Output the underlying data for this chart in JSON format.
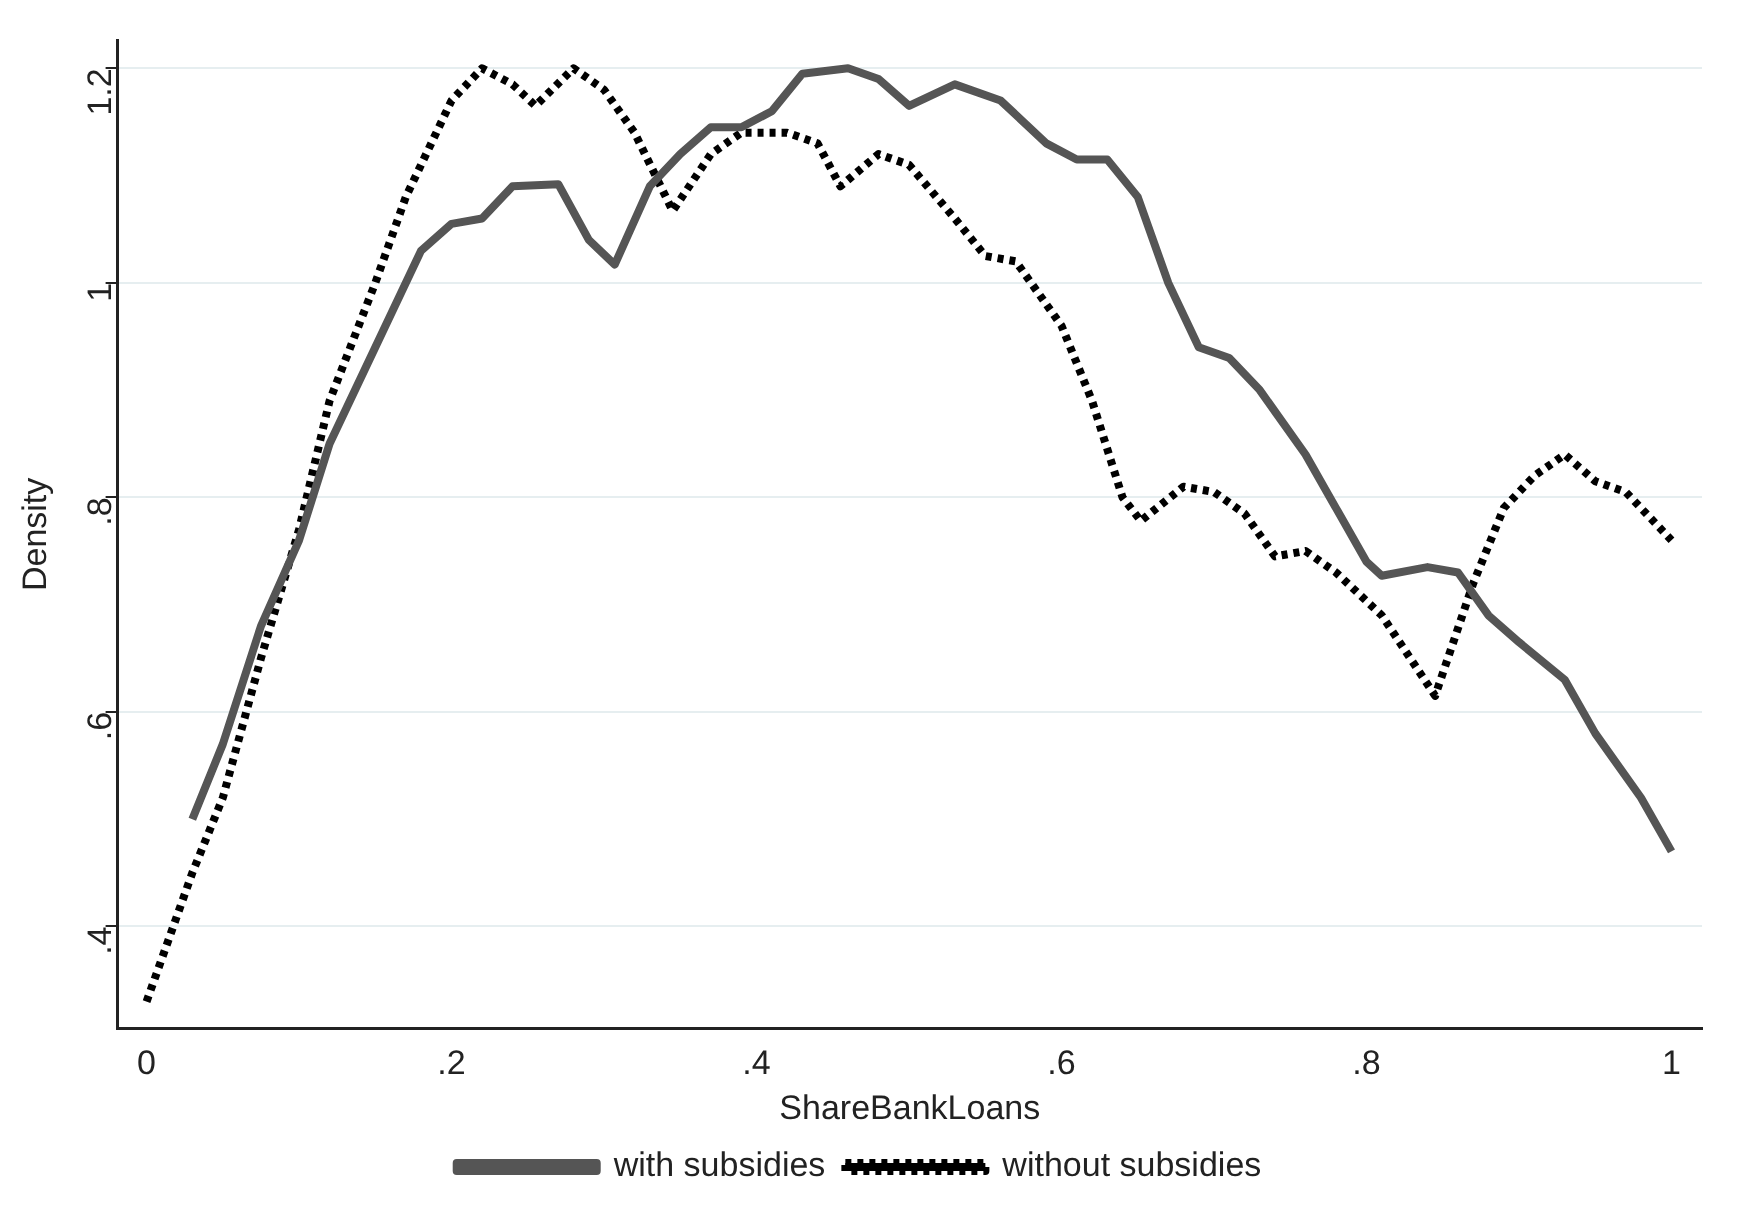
{
  "chart_data": {
    "type": "line",
    "xlabel": "ShareBankLoans",
    "ylabel": "Density",
    "xlim": [
      -0.019,
      1.02
    ],
    "ylim": [
      0.305,
      1.226
    ],
    "xticks": [
      {
        "value": 0,
        "label": "0"
      },
      {
        "value": 0.2,
        "label": ".2"
      },
      {
        "value": 0.4,
        "label": ".4"
      },
      {
        "value": 0.6,
        "label": ".6"
      },
      {
        "value": 0.8,
        "label": ".8"
      },
      {
        "value": 1,
        "label": "1"
      }
    ],
    "yticks": [
      {
        "value": 0.4,
        "label": ".4"
      },
      {
        "value": 0.6,
        "label": ".6"
      },
      {
        "value": 0.8,
        "label": ".8"
      },
      {
        "value": 1,
        "label": "1"
      },
      {
        "value": 1.2,
        "label": "1.2"
      }
    ],
    "grid": "y",
    "legend": "bottom",
    "marker": "none",
    "series": [
      {
        "name": "with subsidies",
        "color": "#555555",
        "line_style": "solid",
        "x": [
          0.03,
          0.05,
          0.075,
          0.1,
          0.12,
          0.15,
          0.18,
          0.2,
          0.22,
          0.24,
          0.27,
          0.29,
          0.307,
          0.33,
          0.35,
          0.37,
          0.39,
          0.41,
          0.43,
          0.46,
          0.48,
          0.5,
          0.53,
          0.56,
          0.59,
          0.61,
          0.63,
          0.65,
          0.67,
          0.69,
          0.71,
          0.73,
          0.76,
          0.78,
          0.8,
          0.81,
          0.84,
          0.86,
          0.88,
          0.9,
          0.93,
          0.95,
          0.98,
          1.0
        ],
        "values": [
          0.5,
          0.57,
          0.68,
          0.76,
          0.85,
          0.94,
          1.03,
          1.055,
          1.06,
          1.09,
          1.092,
          1.04,
          1.017,
          1.09,
          1.12,
          1.145,
          1.145,
          1.16,
          1.195,
          1.2,
          1.19,
          1.165,
          1.185,
          1.17,
          1.13,
          1.115,
          1.115,
          1.08,
          1.0,
          0.94,
          0.93,
          0.9,
          0.84,
          0.79,
          0.74,
          0.727,
          0.735,
          0.73,
          0.69,
          0.665,
          0.63,
          0.58,
          0.52,
          0.47
        ]
      },
      {
        "name": "without subsidies",
        "color": "#000000",
        "line_style": "dotted",
        "x": [
          0,
          0.03,
          0.05,
          0.075,
          0.1,
          0.12,
          0.15,
          0.17,
          0.2,
          0.22,
          0.24,
          0.255,
          0.28,
          0.3,
          0.32,
          0.345,
          0.37,
          0.39,
          0.42,
          0.44,
          0.455,
          0.48,
          0.5,
          0.53,
          0.55,
          0.57,
          0.6,
          0.62,
          0.64,
          0.652,
          0.68,
          0.7,
          0.72,
          0.74,
          0.76,
          0.78,
          0.81,
          0.845,
          0.87,
          0.89,
          0.91,
          0.93,
          0.95,
          0.97,
          1.0
        ],
        "values": [
          0.33,
          0.45,
          0.52,
          0.65,
          0.77,
          0.89,
          1.0,
          1.08,
          1.17,
          1.2,
          1.185,
          1.165,
          1.2,
          1.18,
          1.14,
          1.067,
          1.12,
          1.14,
          1.14,
          1.13,
          1.09,
          1.12,
          1.11,
          1.06,
          1.025,
          1.02,
          0.96,
          0.89,
          0.8,
          0.778,
          0.81,
          0.805,
          0.785,
          0.745,
          0.75,
          0.73,
          0.69,
          0.615,
          0.72,
          0.79,
          0.82,
          0.84,
          0.815,
          0.805,
          0.76
        ]
      }
    ]
  }
}
